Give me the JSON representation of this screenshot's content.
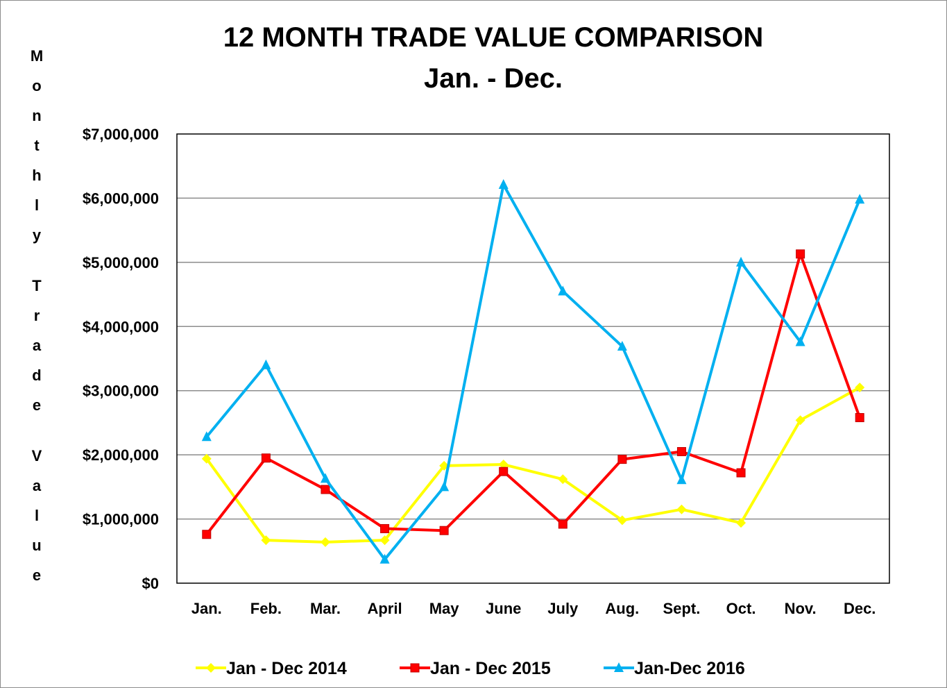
{
  "chart_data": {
    "type": "line",
    "title": "12 MONTH TRADE VALUE COMPARISON",
    "subtitle": "Jan.  - Dec.",
    "ylabel": "Monthly Trade Value",
    "xlabel": "",
    "categories": [
      "Jan.",
      "Feb.",
      "Mar.",
      "April",
      "May",
      "June",
      "July",
      "Aug.",
      "Sept.",
      "Oct.",
      "Nov.",
      "Dec."
    ],
    "ylim": [
      0,
      7000000
    ],
    "yticks": [
      0,
      1000000,
      2000000,
      3000000,
      4000000,
      5000000,
      6000000,
      7000000
    ],
    "ytick_labels": [
      "$0",
      "$1,000,000",
      "$2,000,000",
      "$3,000,000",
      "$4,000,000",
      "$5,000,000",
      "$6,000,000",
      "$7,000,000"
    ],
    "grid": "horizontal",
    "legend_position": "bottom",
    "series": [
      {
        "name": "Jan - Dec 2014",
        "color": "#ffff00",
        "marker": "diamond",
        "values": [
          1940000,
          670000,
          640000,
          670000,
          1830000,
          1850000,
          1620000,
          980000,
          1150000,
          940000,
          2540000,
          3050000
        ]
      },
      {
        "name": "Jan - Dec 2015",
        "color": "#ff0000",
        "marker": "square",
        "values": [
          760000,
          1950000,
          1460000,
          850000,
          820000,
          1740000,
          920000,
          1930000,
          2050000,
          1720000,
          5130000,
          2580000
        ]
      },
      {
        "name": "Jan-Dec 2016",
        "color": "#00b0f0",
        "marker": "triangle",
        "values": [
          2280000,
          3400000,
          1630000,
          370000,
          1500000,
          6210000,
          4550000,
          3690000,
          1610000,
          5000000,
          3760000,
          5980000
        ]
      }
    ]
  }
}
